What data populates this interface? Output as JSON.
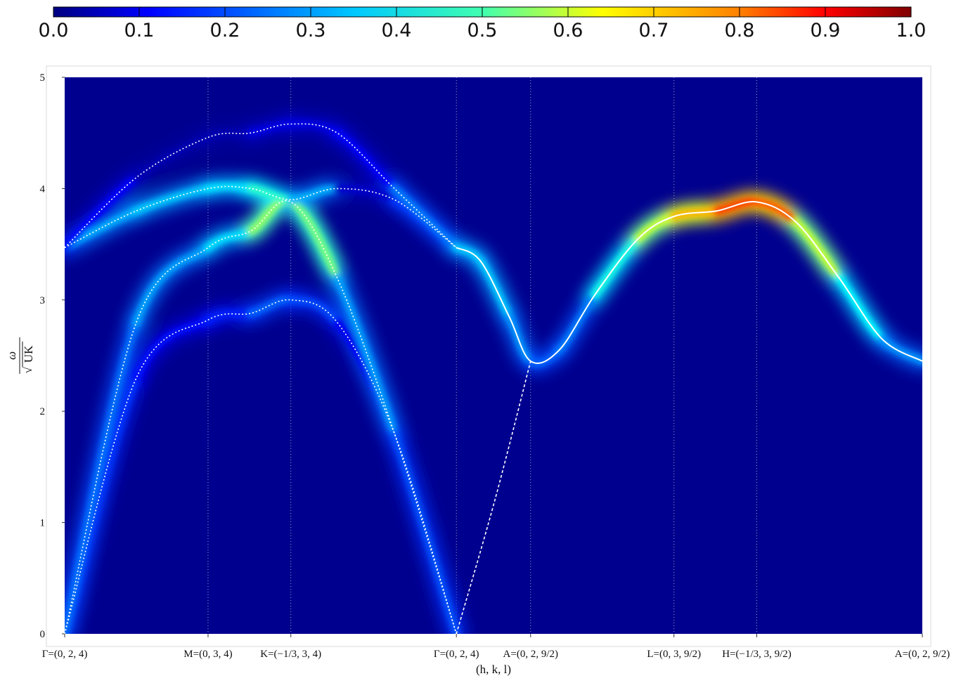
{
  "chart_data": {
    "type": "heatmap",
    "title": "",
    "xlabel": "(h, k, l)",
    "ylabel": {
      "numerator": "ω",
      "denominator": "UK"
    },
    "ylim": [
      0,
      5
    ],
    "y_ticks": [
      "0",
      "1",
      "2",
      "3",
      "4",
      "5"
    ],
    "colormap": "jet",
    "colorbar": {
      "range": [
        0,
        1
      ],
      "ticks": [
        "0.0",
        "0.1",
        "0.2",
        "0.3",
        "0.4",
        "0.5",
        "0.6",
        "0.7",
        "0.8",
        "0.9",
        "1.0"
      ],
      "placement": "top"
    },
    "background_color": "#00008f",
    "curve_color": "#ffffff",
    "path_points": [
      {
        "label": "Γ=(0, 2, 4)",
        "position": 0
      },
      {
        "label": "M=(0, 3, 4)",
        "position": 1
      },
      {
        "label": "K=(−1/3, 3, 4)",
        "position": 1.5774
      },
      {
        "label": "Γ=(0, 2, 4)",
        "position": 2.7321
      },
      {
        "label": "A=(0, 2, 9/2)",
        "position": 3.2496
      },
      {
        "label": "L=(0, 3, 9/2)",
        "position": 4.2496
      },
      {
        "label": "H=(−1/3, 3, 9/2)",
        "position": 4.827
      },
      {
        "label": "A=(0, 2, 9/2)",
        "position": 5.9817
      }
    ],
    "series": [
      {
        "style": "dotted",
        "x": [
          0,
          0.5,
          1.0,
          1.3,
          1.5774,
          1.9,
          2.3,
          2.7321
        ],
        "y": [
          0.0,
          2.3,
          2.82,
          2.88,
          3.0,
          2.8,
          1.8,
          0.0
        ],
        "intensity": [
          0.2,
          0.15,
          0.12,
          0.2,
          0.25,
          0.15,
          0.08,
          0.05
        ]
      },
      {
        "style": "dotted",
        "x": [
          0,
          0.5,
          1.0,
          1.3,
          1.5774,
          1.9,
          2.3,
          2.7321
        ],
        "y": [
          0.0,
          2.8,
          3.47,
          3.62,
          3.88,
          3.2,
          1.8,
          0.0
        ],
        "intensity": [
          0.2,
          0.28,
          0.3,
          0.4,
          0.65,
          0.35,
          0.22,
          0.2
        ]
      },
      {
        "style": "dotted",
        "x": [
          0,
          0.5,
          1.0,
          1.3,
          1.5774,
          1.9,
          2.3,
          2.7321
        ],
        "y": [
          3.47,
          3.8,
          4.0,
          4.0,
          3.9,
          4.0,
          3.9,
          3.47
        ],
        "intensity": [
          0.3,
          0.3,
          0.35,
          0.35,
          0.5,
          0.1,
          0.05,
          0.3
        ]
      },
      {
        "style": "dotted",
        "x": [
          0,
          0.5,
          1.0,
          1.3,
          1.5774,
          1.9,
          2.3,
          2.7321
        ],
        "y": [
          3.47,
          4.1,
          4.46,
          4.5,
          4.58,
          4.5,
          4.0,
          3.47
        ],
        "intensity": [
          0.2,
          0.05,
          0.05,
          0.05,
          0.15,
          0.05,
          0.2,
          0.3
        ]
      },
      {
        "style": "dashed",
        "x": [
          2.7321,
          3.0,
          3.2496
        ],
        "y": [
          0.0,
          1.2,
          2.45
        ],
        "intensity": [
          0.0,
          0.0,
          0.0
        ]
      },
      {
        "style": "solid",
        "x": [
          2.7321,
          2.9,
          3.1,
          3.2496,
          3.45,
          3.7,
          4.0,
          4.2496,
          4.55,
          4.827,
          5.1,
          5.4,
          5.7,
          5.9817
        ],
        "y": [
          3.47,
          3.35,
          2.85,
          2.45,
          2.55,
          3.05,
          3.55,
          3.75,
          3.8,
          3.88,
          3.7,
          3.2,
          2.65,
          2.45
        ],
        "intensity": [
          0.3,
          0.35,
          0.3,
          0.25,
          0.2,
          0.3,
          0.5,
          0.65,
          0.75,
          0.88,
          0.7,
          0.45,
          0.3,
          0.25
        ]
      }
    ]
  }
}
